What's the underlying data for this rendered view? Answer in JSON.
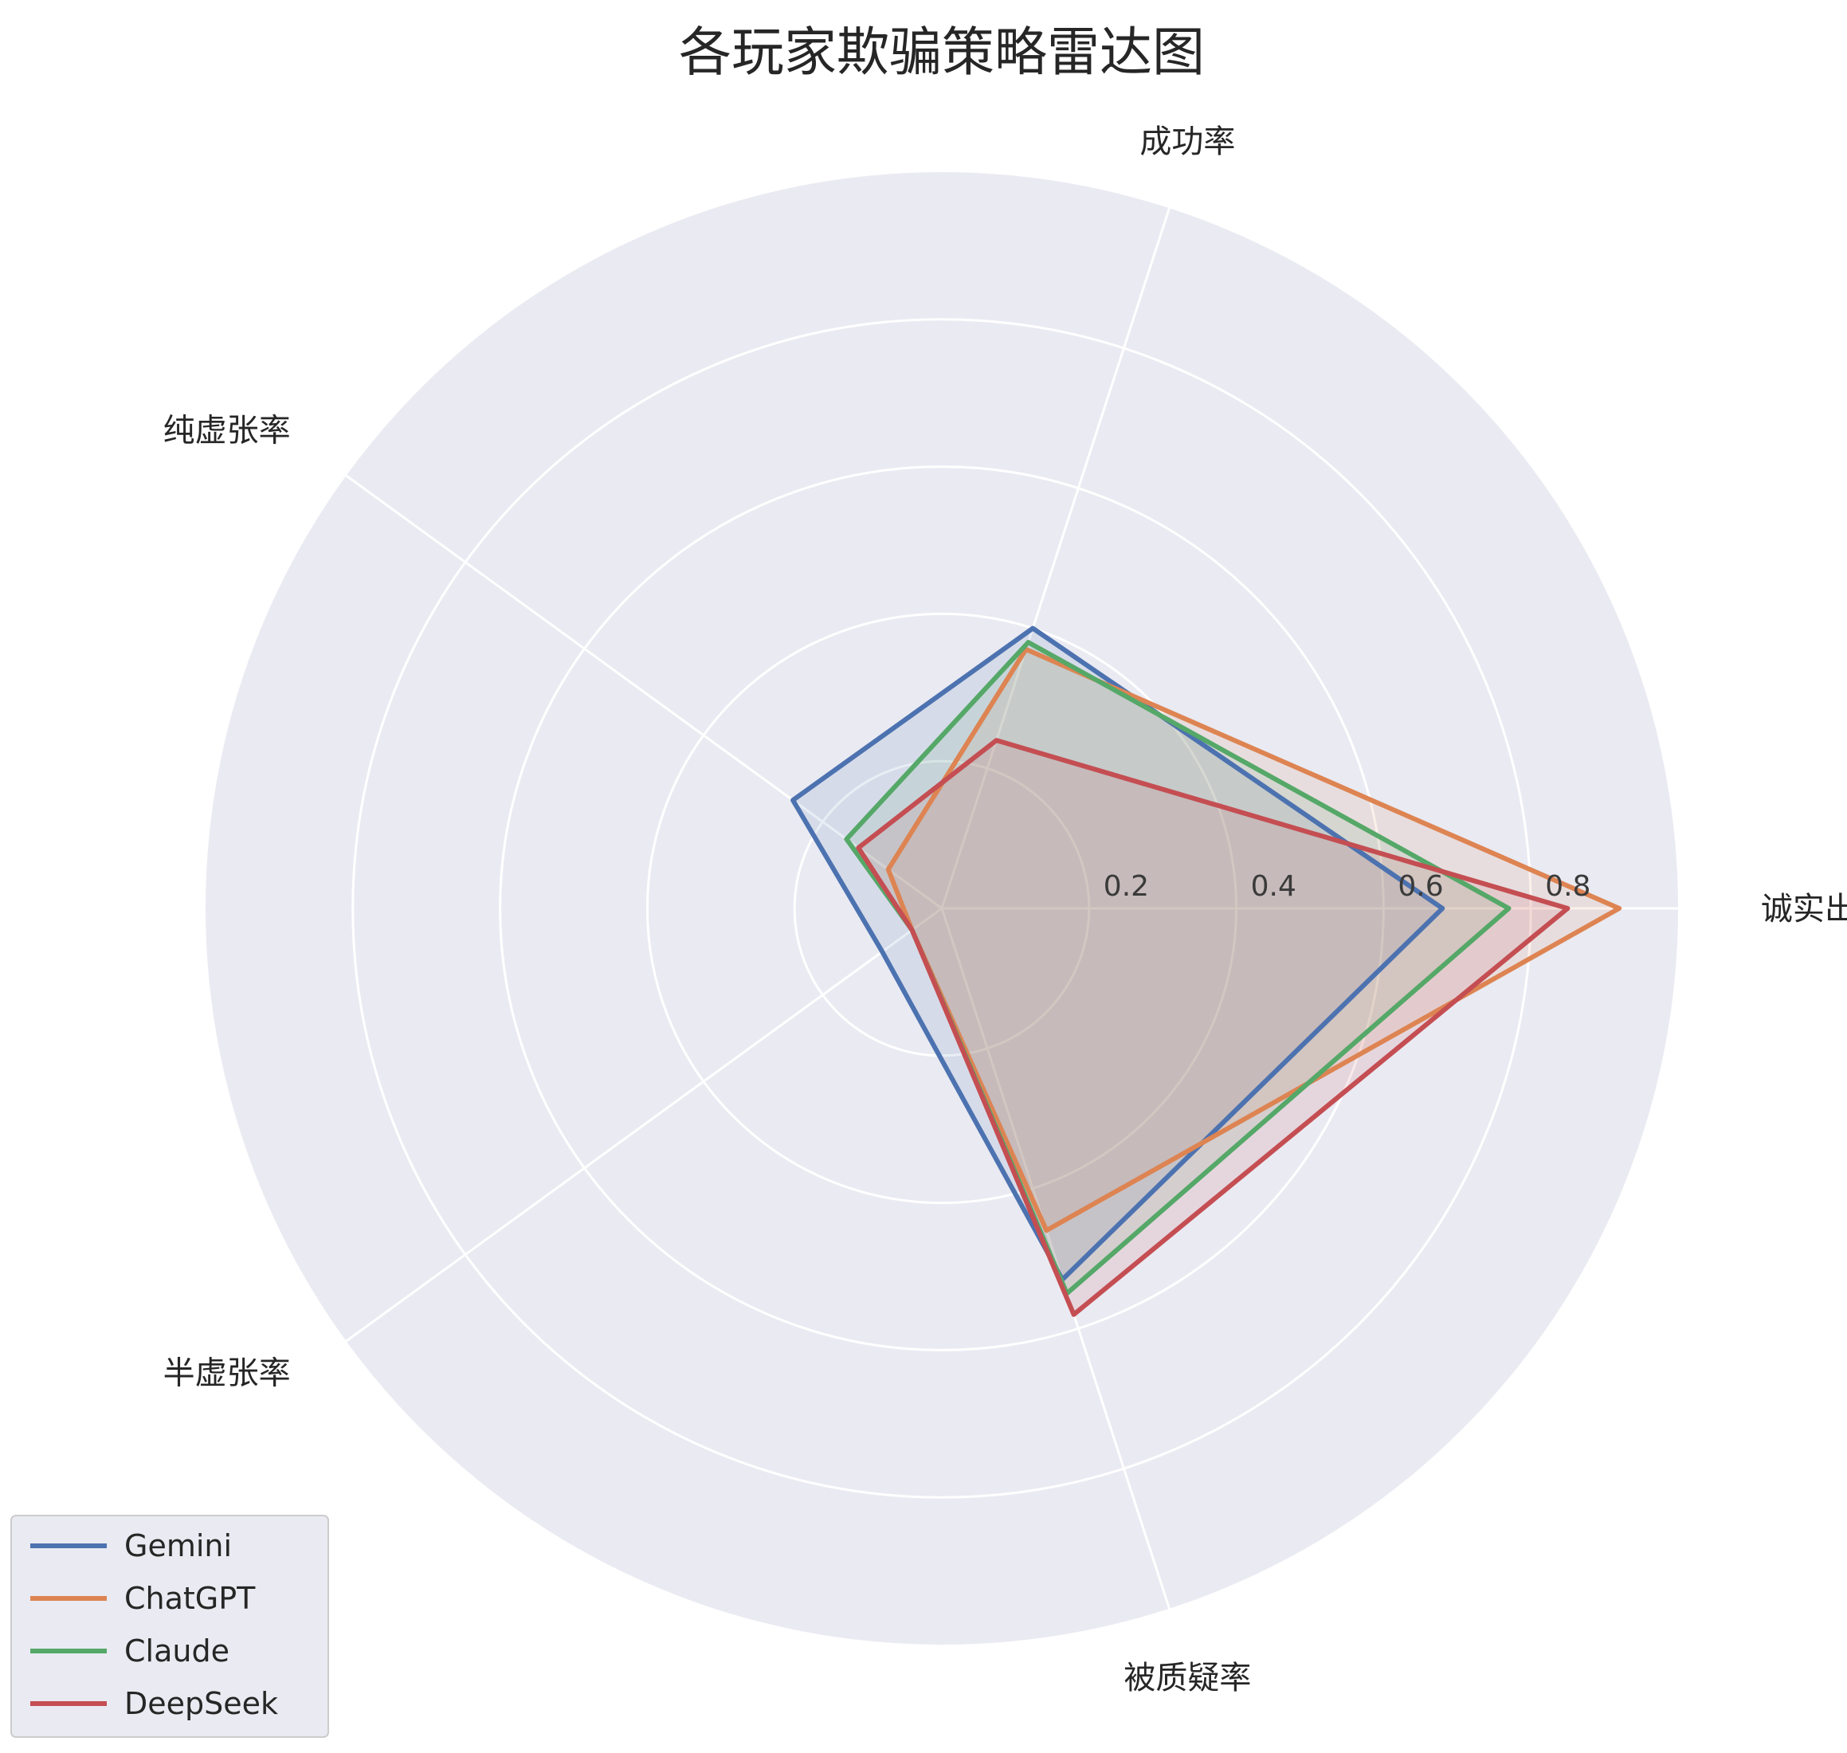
{
  "chart_data": {
    "type": "radar",
    "title": "各玩家欺骗策略雷达图",
    "axes": [
      "诚实出牌率",
      "成功率",
      "纯虚张率",
      "半虚张率",
      "被质疑率"
    ],
    "rlim": [
      0,
      1.0
    ],
    "radial_ticks": [
      0.2,
      0.4,
      0.6,
      0.8
    ],
    "radial_tick_labels": [
      "0.2",
      "0.4",
      "0.6",
      "0.8"
    ],
    "grid": true,
    "legend_position": "lower-left",
    "series": [
      {
        "name": "Gemini",
        "color": "#4c72b0",
        "values": [
          0.68,
          0.4,
          0.25,
          0.1,
          0.53
        ]
      },
      {
        "name": "ChatGPT",
        "color": "#dd8452",
        "values": [
          0.92,
          0.37,
          0.09,
          0.05,
          0.46
        ]
      },
      {
        "name": "Claude",
        "color": "#55a868",
        "values": [
          0.77,
          0.38,
          0.16,
          0.05,
          0.55
        ]
      },
      {
        "name": "DeepSeek",
        "color": "#c44e52",
        "values": [
          0.85,
          0.24,
          0.14,
          0.05,
          0.58
        ]
      }
    ]
  }
}
